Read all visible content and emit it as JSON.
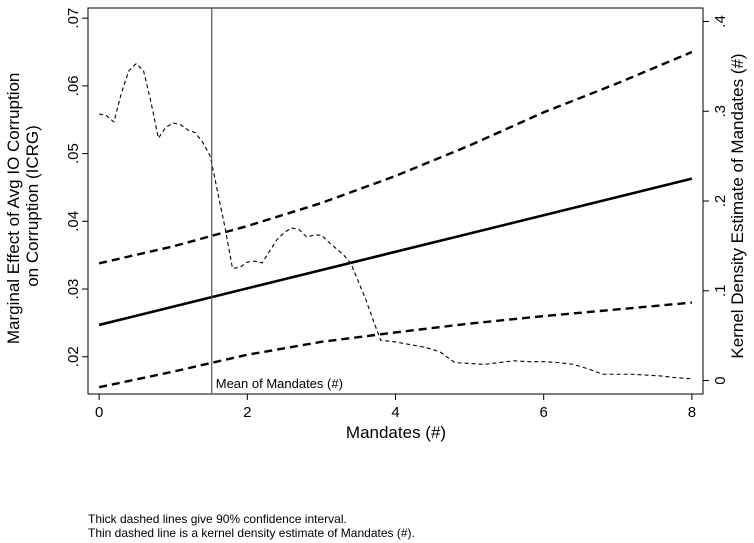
{
  "chart_data": {
    "type": "line",
    "xlabel": "Mandates (#)",
    "ylabel_left": [
      "Marginal Effect of Avg IO Corruption",
      "on Corruption (ICRG)"
    ],
    "ylabel_right": "Kernel Density Estimate of Mandates (#)",
    "xlim": [
      -0.15,
      8.15
    ],
    "ylim_left": [
      0.0145,
      0.0715
    ],
    "ylim_right": [
      -0.015,
      0.415
    ],
    "x_ticks": [
      0,
      2,
      4,
      6,
      8
    ],
    "x_tick_labels": [
      "0",
      "2",
      "4",
      "6",
      "8"
    ],
    "y_left_ticks": [
      0.02,
      0.03,
      0.04,
      0.05,
      0.06,
      0.07
    ],
    "y_left_tick_labels": [
      ".02",
      ".03",
      ".04",
      ".05",
      ".06",
      ".07"
    ],
    "y_right_ticks": [
      0,
      0.1,
      0.2,
      0.3,
      0.4
    ],
    "y_right_tick_labels": [
      "0",
      ".1",
      ".2",
      ".3",
      ".4"
    ],
    "grid": false,
    "series": [
      {
        "style": "solid-thick",
        "axis": "left",
        "x": [
          0,
          8
        ],
        "y": [
          0.0247,
          0.0463
        ]
      },
      {
        "style": "dashed-thick",
        "axis": "left",
        "x": [
          0,
          1,
          2,
          3,
          4,
          5,
          6,
          7,
          8
        ],
        "y": [
          0.0338,
          0.0363,
          0.0393,
          0.0427,
          0.0467,
          0.0512,
          0.0561,
          0.0604,
          0.065
        ]
      },
      {
        "style": "dashed-thick",
        "axis": "left",
        "x": [
          0,
          1,
          2,
          3,
          4,
          5,
          6,
          7,
          8
        ],
        "y": [
          0.0155,
          0.0178,
          0.0203,
          0.0222,
          0.0236,
          0.0249,
          0.026,
          0.027,
          0.028
        ]
      },
      {
        "style": "dashed-thin",
        "axis": "right",
        "x": [
          0,
          0.1,
          0.2,
          0.3,
          0.4,
          0.5,
          0.6,
          0.7,
          0.8,
          0.9,
          1.0,
          1.1,
          1.2,
          1.3,
          1.4,
          1.5,
          1.6,
          1.7,
          1.8,
          1.9,
          2.0,
          2.1,
          2.2,
          2.3,
          2.4,
          2.5,
          2.6,
          2.7,
          2.8,
          2.9,
          3.0,
          3.1,
          3.2,
          3.3,
          3.4,
          3.5,
          3.6,
          3.7,
          3.8,
          3.9,
          4.0,
          4.2,
          4.4,
          4.6,
          4.8,
          5.0,
          5.2,
          5.4,
          5.6,
          5.8,
          6.0,
          6.2,
          6.4,
          6.6,
          6.8,
          7.0,
          7.2,
          7.4,
          7.6,
          7.8,
          8.0
        ],
        "y": [
          0.297,
          0.295,
          0.288,
          0.32,
          0.345,
          0.353,
          0.345,
          0.31,
          0.27,
          0.282,
          0.287,
          0.285,
          0.279,
          0.276,
          0.265,
          0.25,
          0.21,
          0.17,
          0.125,
          0.126,
          0.132,
          0.133,
          0.131,
          0.144,
          0.157,
          0.165,
          0.17,
          0.168,
          0.16,
          0.162,
          0.162,
          0.154,
          0.147,
          0.14,
          0.13,
          0.11,
          0.09,
          0.067,
          0.045,
          0.044,
          0.043,
          0.04,
          0.037,
          0.032,
          0.02,
          0.019,
          0.018,
          0.02,
          0.022,
          0.021,
          0.021,
          0.02,
          0.018,
          0.013,
          0.007,
          0.007,
          0.007,
          0.006,
          0.005,
          0.003,
          0.002
        ]
      }
    ],
    "vline": {
      "x": 1.52,
      "label": "Mean of Mandates (#)"
    },
    "notes": [
      "Thick dashed lines give 90% confidence interval.",
      "Thin dashed line is a kernel density estimate of Mandates (#)."
    ]
  }
}
